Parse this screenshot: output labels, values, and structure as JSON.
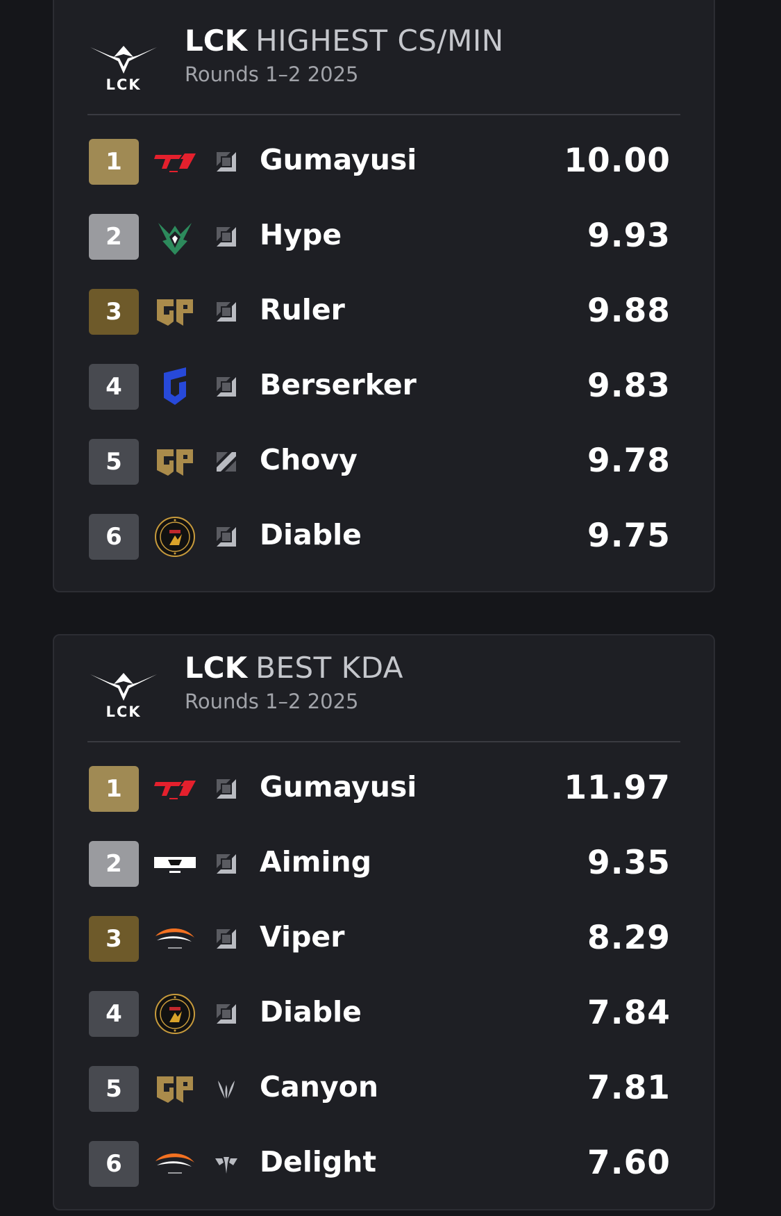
{
  "colors": {
    "background": "#15161a",
    "card": "#1e1f24",
    "rank_gold": "#a08a54",
    "rank_silver": "#9a9b9f",
    "rank_bronze": "#6e5a2a",
    "rank_other": "#484a50",
    "t1_red": "#e4202d",
    "bro_green": "#2d8a5c",
    "geng_gold": "#aa8b4b",
    "dns_blue": "#2749d9",
    "hle_orange": "#f37121"
  },
  "cards": [
    {
      "logo_text": "LCK",
      "title_brand": "LCK",
      "title_main": "HIGHEST CS/MIN",
      "subtitle": "Rounds 1–2 2025",
      "rows": [
        {
          "rank": "1",
          "team_icon": "t1-logo",
          "role_icon": "bot-lane-icon",
          "player": "Gumayusi",
          "value": "10.00"
        },
        {
          "rank": "2",
          "team_icon": "bro-logo",
          "role_icon": "bot-lane-icon",
          "player": "Hype",
          "value": "9.93"
        },
        {
          "rank": "3",
          "team_icon": "geng-logo",
          "role_icon": "bot-lane-icon",
          "player": "Ruler",
          "value": "9.88"
        },
        {
          "rank": "4",
          "team_icon": "dns-logo",
          "role_icon": "bot-lane-icon",
          "player": "Berserker",
          "value": "9.83"
        },
        {
          "rank": "5",
          "team_icon": "geng-logo",
          "role_icon": "mid-lane-icon",
          "player": "Chovy",
          "value": "9.78"
        },
        {
          "rank": "6",
          "team_icon": "fearx-logo",
          "role_icon": "bot-lane-icon",
          "player": "Diable",
          "value": "9.75"
        }
      ]
    },
    {
      "logo_text": "LCK",
      "title_brand": "LCK",
      "title_main": "BEST KDA",
      "subtitle": "Rounds 1–2 2025",
      "rows": [
        {
          "rank": "1",
          "team_icon": "t1-logo",
          "role_icon": "bot-lane-icon",
          "player": "Gumayusi",
          "value": "11.97"
        },
        {
          "rank": "2",
          "team_icon": "kt-logo",
          "role_icon": "bot-lane-icon",
          "player": "Aiming",
          "value": "9.35"
        },
        {
          "rank": "3",
          "team_icon": "hle-logo",
          "role_icon": "bot-lane-icon",
          "player": "Viper",
          "value": "8.29"
        },
        {
          "rank": "4",
          "team_icon": "fearx-logo",
          "role_icon": "bot-lane-icon",
          "player": "Diable",
          "value": "7.84"
        },
        {
          "rank": "5",
          "team_icon": "geng-logo",
          "role_icon": "jungle-icon",
          "player": "Canyon",
          "value": "7.81"
        },
        {
          "rank": "6",
          "team_icon": "hle-logo",
          "role_icon": "support-icon",
          "player": "Delight",
          "value": "7.60"
        }
      ]
    }
  ]
}
